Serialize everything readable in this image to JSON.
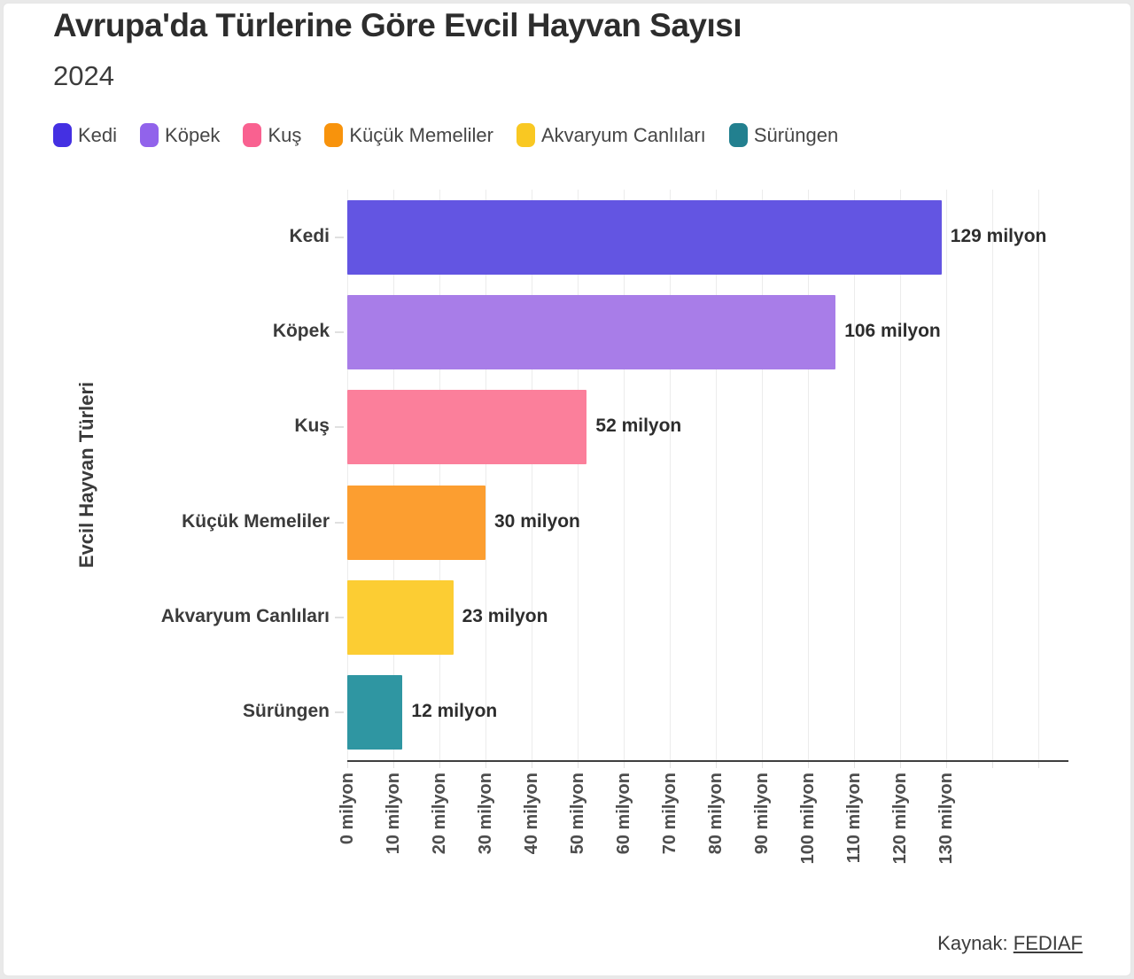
{
  "header": {
    "title": "Avrupa'da Türlerine Göre Evcil Hayvan Sayısı",
    "subtitle": "2024"
  },
  "legend": {
    "position": "top",
    "items": [
      {
        "label": "Kedi",
        "color": "#4430e2"
      },
      {
        "label": "Köpek",
        "color": "#9163eb"
      },
      {
        "label": "Kuş",
        "color": "#f96190"
      },
      {
        "label": "Küçük Memeliler",
        "color": "#f8930c"
      },
      {
        "label": "Akvaryum Canlıları",
        "color": "#f9c822"
      },
      {
        "label": "Sürüngen",
        "color": "#22808f"
      }
    ]
  },
  "chart_data": {
    "type": "bar",
    "orientation": "horizontal",
    "title": "Avrupa'da Türlerine Göre Evcil Hayvan Sayısı",
    "subtitle": "2024",
    "xlabel": "",
    "ylabel": "Evcil Hayvan Türleri",
    "unit": "milyon",
    "categories": [
      "Kedi",
      "Köpek",
      "Kuş",
      "Küçük Memeliler",
      "Akvaryum Canlıları",
      "Sürüngen"
    ],
    "values": [
      129,
      106,
      52,
      30,
      23,
      12
    ],
    "value_labels": [
      "129 milyon",
      "106 milyon",
      "52 milyon",
      "30 milyon",
      "23 milyon",
      "12 milyon"
    ],
    "bar_colors": [
      "#6355e2",
      "#a87de8",
      "#fb7f9b",
      "#fc9e30",
      "#fccd33",
      "#2f96a2"
    ],
    "xlim": [
      0,
      156
    ],
    "xticks": [
      0,
      10,
      20,
      30,
      40,
      50,
      60,
      70,
      80,
      90,
      100,
      110,
      120,
      130
    ],
    "xtick_labels": [
      "0 milyon",
      "10 milyon",
      "20 milyon",
      "30 milyon",
      "40 milyon",
      "50 milyon",
      "60 milyon",
      "70 milyon",
      "80 milyon",
      "90 milyon",
      "100 milyon",
      "110 milyon",
      "120 milyon",
      "130 milyon"
    ],
    "extra_gridlines": [
      140,
      150
    ],
    "grid": true,
    "legend_position": "top"
  },
  "footer": {
    "source_label": "Kaynak: ",
    "source_link_text": "FEDIAF"
  }
}
